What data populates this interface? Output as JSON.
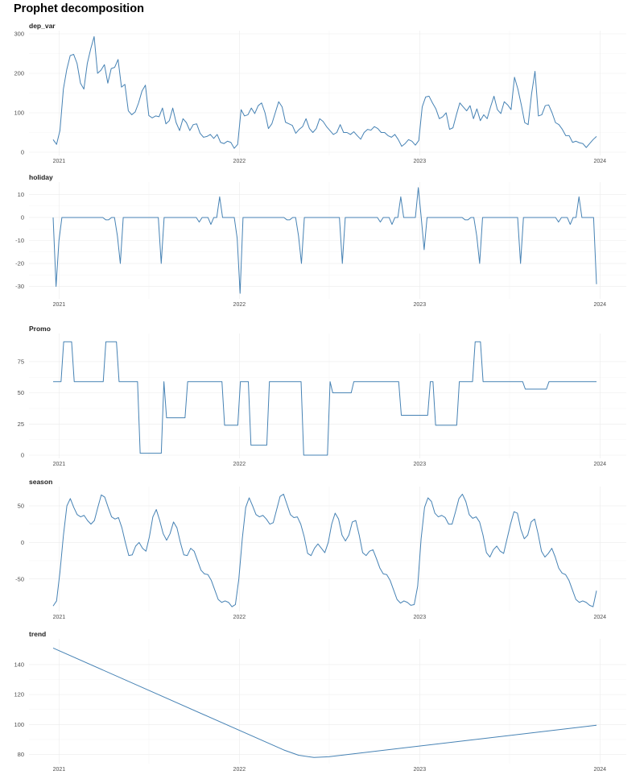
{
  "title": "Prophet decomposition",
  "colors": {
    "line": "#4682b4",
    "grid_major": "#ebebeb",
    "grid_minor": "#f4f4f4"
  },
  "chart_data": [
    {
      "type": "line",
      "title": "dep_var",
      "x_ticks": [
        "2021",
        "2022",
        "2023",
        "2024"
      ],
      "y_ticks": [
        "0",
        "100",
        "200",
        "300"
      ],
      "ylim": [
        0,
        300
      ],
      "grid": true,
      "x": "weekly, Dec 2020 - Dec 2023",
      "series": [
        {
          "values": [
            32,
            20,
            55,
            160,
            210,
            245,
            248,
            225,
            175,
            160,
            225,
            262,
            293,
            200,
            208,
            222,
            175,
            212,
            215,
            235,
            165,
            172,
            105,
            95,
            102,
            125,
            155,
            170,
            93,
            87,
            92,
            90,
            112,
            72,
            80,
            112,
            75,
            55,
            85,
            75,
            55,
            70,
            72,
            48,
            38,
            40,
            45,
            35,
            45,
            25,
            22,
            28,
            25,
            10,
            20,
            108,
            92,
            95,
            112,
            98,
            118,
            125,
            100,
            60,
            72,
            100,
            128,
            115,
            76,
            72,
            68,
            48,
            58,
            65,
            85,
            60,
            50,
            60,
            85,
            78,
            65,
            55,
            45,
            50,
            70,
            50,
            50,
            45,
            52,
            42,
            33,
            50,
            58,
            56,
            65,
            60,
            50,
            50,
            42,
            38,
            45,
            32,
            15,
            22,
            32,
            28,
            18,
            30,
            115,
            140,
            142,
            125,
            110,
            85,
            90,
            100,
            58,
            62,
            95,
            125,
            115,
            105,
            118,
            85,
            110,
            80,
            95,
            85,
            115,
            142,
            108,
            98,
            128,
            120,
            108,
            190,
            160,
            120,
            75,
            70,
            148,
            205,
            92,
            95,
            118,
            120,
            100,
            75,
            70,
            58,
            42,
            42,
            25,
            28,
            24,
            22,
            12,
            22,
            32,
            40
          ]
        }
      ]
    },
    {
      "type": "line",
      "title": "holiday",
      "x_ticks": [
        "2021",
        "2022",
        "2023",
        "2024"
      ],
      "y_ticks": [
        "-30",
        "-20",
        "-10",
        "0",
        "10"
      ],
      "ylim": [
        -34,
        14
      ],
      "grid": true,
      "series": [
        {
          "values": [
            0,
            -30,
            -10,
            0,
            0,
            0,
            0,
            0,
            0,
            0,
            0,
            0,
            0,
            0,
            0,
            0,
            0,
            0,
            -1,
            -1,
            0,
            0,
            -8,
            -20,
            0,
            0,
            0,
            0,
            0,
            0,
            0,
            0,
            0,
            0,
            0,
            0,
            0,
            -20,
            0,
            0,
            0,
            0,
            0,
            0,
            0,
            0,
            0,
            0,
            0,
            0,
            -2,
            0,
            0,
            0,
            -3,
            0,
            0,
            9,
            0,
            0,
            0,
            0,
            0,
            -9,
            -33,
            0,
            0,
            0,
            0,
            0,
            0,
            0,
            0,
            0,
            0,
            0,
            0,
            0,
            0,
            0,
            -1,
            -1,
            0,
            0,
            -8,
            -20,
            0,
            0,
            0,
            0,
            0,
            0,
            0,
            0,
            0,
            0,
            0,
            0,
            0,
            -20,
            0,
            0,
            0,
            0,
            0,
            0,
            0,
            0,
            0,
            0,
            0,
            0,
            -2,
            0,
            0,
            0,
            -3,
            0,
            0,
            9,
            0,
            0,
            0,
            0,
            0,
            13,
            0,
            -14,
            0,
            0,
            0,
            0,
            0,
            0,
            0,
            0,
            0,
            0,
            0,
            0,
            0,
            -1,
            -1,
            0,
            0,
            -8,
            -20,
            0,
            0,
            0,
            0,
            0,
            0,
            0,
            0,
            0,
            0,
            0,
            0,
            0,
            -20,
            0,
            0,
            0,
            0,
            0,
            0,
            0,
            0,
            0,
            0,
            0,
            0,
            -2,
            0,
            0,
            0,
            -3,
            0,
            0,
            9,
            0,
            0,
            0,
            0,
            0,
            -29
          ]
        }
      ]
    },
    {
      "type": "line",
      "title": "Promo",
      "x_ticks": [
        "2021",
        "2022",
        "2023",
        "2024"
      ],
      "y_ticks": [
        "0",
        "25",
        "50",
        "75"
      ],
      "ylim": [
        0,
        95
      ],
      "grid": true,
      "series": [
        {
          "values": [
            59,
            59,
            59,
            59,
            91,
            91,
            91,
            91,
            59,
            59,
            59,
            59,
            59,
            59,
            59,
            59,
            59,
            59,
            59,
            59,
            91,
            91,
            91,
            91,
            91,
            59,
            59,
            59,
            59,
            59,
            59,
            59,
            59,
            1.5,
            1.5,
            1.5,
            1.5,
            1.5,
            1.5,
            1.5,
            1.5,
            1.5,
            59,
            30,
            30,
            30,
            30,
            30,
            30,
            30,
            30,
            59,
            59,
            59,
            59,
            59,
            59,
            59,
            59,
            59,
            59,
            59,
            59,
            59,
            59,
            24,
            24,
            24,
            24,
            24,
            24,
            59,
            59,
            59,
            59,
            8,
            8,
            8,
            8,
            8,
            8,
            8,
            59,
            59,
            59,
            59,
            59,
            59,
            59,
            59,
            59,
            59,
            59,
            59,
            59,
            0,
            0,
            0,
            0,
            0,
            0,
            0,
            0,
            0,
            0,
            59,
            50,
            50,
            50,
            50,
            50,
            50,
            50,
            50,
            59,
            59,
            59,
            59,
            59,
            59,
            59,
            59,
            59,
            59,
            59,
            59,
            59,
            59,
            59,
            59,
            59,
            59,
            32,
            32,
            32,
            32,
            32,
            32,
            32,
            32,
            32,
            32,
            32,
            59,
            59,
            24,
            24,
            24,
            24,
            24,
            24,
            24,
            24,
            24,
            59,
            59,
            59,
            59,
            59,
            59,
            91,
            91,
            91,
            59,
            59,
            59,
            59,
            59,
            59,
            59,
            59,
            59,
            59,
            59,
            59,
            59,
            59,
            59,
            59,
            53,
            53,
            53,
            53,
            53,
            53,
            53,
            53,
            53,
            59,
            59,
            59,
            59,
            59,
            59,
            59,
            59,
            59,
            59,
            59,
            59,
            59,
            59,
            59,
            59,
            59,
            59,
            59
          ]
        }
      ]
    },
    {
      "type": "line",
      "title": "season",
      "x_ticks": [
        "2021",
        "2022",
        "2023",
        "2024"
      ],
      "y_ticks": [
        "-50",
        "0",
        "50"
      ],
      "ylim": [
        -90,
        72
      ],
      "grid": true,
      "series": [
        {
          "values": [
            -87,
            -80,
            -40,
            10,
            50,
            60,
            48,
            38,
            35,
            37,
            30,
            25,
            30,
            48,
            65,
            62,
            48,
            35,
            32,
            34,
            20,
            0,
            -18,
            -17,
            -5,
            0,
            -8,
            -12,
            8,
            35,
            45,
            30,
            12,
            3,
            12,
            28,
            20,
            0,
            -17,
            -18,
            -8,
            -12,
            -25,
            -38,
            -43,
            -44,
            -52,
            -65,
            -78,
            -82,
            -80,
            -82,
            -88,
            -85,
            -50,
            5,
            48,
            61,
            50,
            38,
            35,
            37,
            32,
            25,
            27,
            45,
            63,
            66,
            52,
            38,
            34,
            35,
            25,
            8,
            -15,
            -18,
            -8,
            -2,
            -8,
            -14,
            0,
            25,
            40,
            32,
            10,
            2,
            10,
            28,
            30,
            10,
            -14,
            -18,
            -12,
            -10,
            -22,
            -35,
            -43,
            -44,
            -52,
            -65,
            -78,
            -83,
            -80,
            -82,
            -86,
            -85,
            -60,
            5,
            48,
            61,
            56,
            40,
            35,
            37,
            34,
            25,
            25,
            42,
            60,
            66,
            56,
            38,
            33,
            35,
            28,
            10,
            -14,
            -20,
            -10,
            -5,
            -12,
            -15,
            5,
            25,
            42,
            40,
            18,
            5,
            10,
            28,
            32,
            12,
            -12,
            -20,
            -15,
            -8,
            -20,
            -35,
            -42,
            -44,
            -52,
            -65,
            -78,
            -82,
            -80,
            -82,
            -86,
            -88,
            -66
          ]
        }
      ]
    },
    {
      "type": "line",
      "title": "trend",
      "x_ticks": [
        "2021",
        "2022",
        "2023",
        "2024"
      ],
      "y_ticks": [
        "80",
        "100",
        "120",
        "140"
      ],
      "ylim": [
        76,
        155
      ],
      "grid": true,
      "x": [
        "2020-12-20",
        "2022-04-01",
        "2022-05-01",
        "2022-06-01",
        "2022-07-01",
        "2023-12-25"
      ],
      "series": [
        {
          "values": [
            151,
            83,
            79.5,
            78,
            78.5,
            99.5
          ]
        }
      ]
    }
  ]
}
